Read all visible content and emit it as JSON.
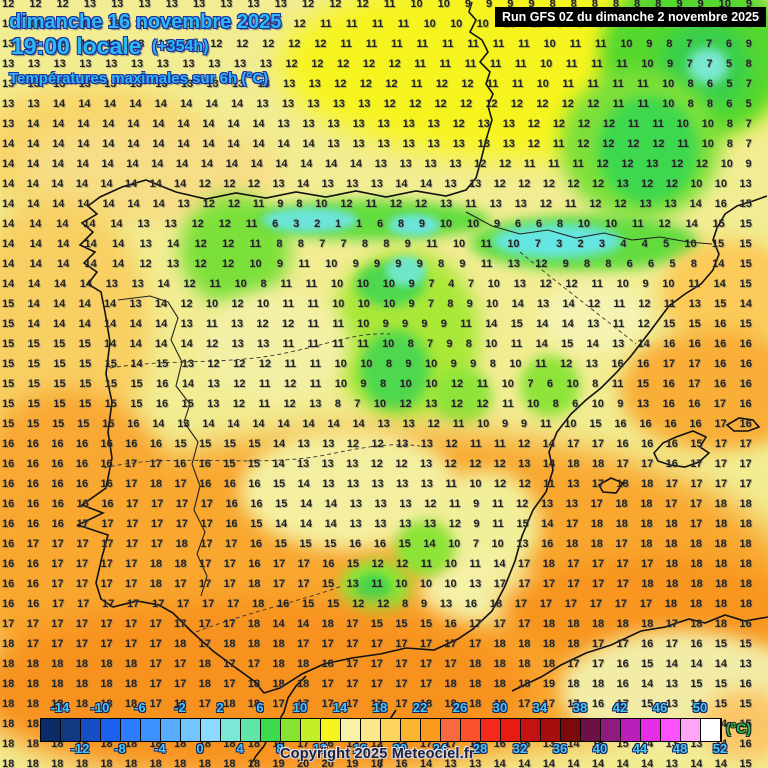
{
  "header": {
    "date_line": "dimanche 16 novembre 2025",
    "time_line": "19:00 locale",
    "offset": "(+354h)",
    "subtitle": "Températures maximales sur 6h (°C)",
    "run_info": "Run GFS 0Z du dimanche 2 novembre 2025"
  },
  "footer": {
    "copyright": "Copyright 2025 Meteociel.fr"
  },
  "colorbar": {
    "unit": "(°C)",
    "top_labels": [
      "-14",
      "-10",
      "-6",
      "-2",
      "2",
      "6",
      "10",
      "14",
      "18",
      "22",
      "26",
      "30",
      "34",
      "38",
      "42",
      "46",
      "50"
    ],
    "bottom_labels": [
      "-12",
      "-8",
      "-4",
      "0",
      "4",
      "8",
      "12",
      "16",
      "20",
      "24",
      "28",
      "32",
      "36",
      "40",
      "44",
      "48",
      "52"
    ],
    "cells": [
      "#0b2b66",
      "#0f3a82",
      "#164fc2",
      "#1c60ee",
      "#2d7bff",
      "#3e92ff",
      "#57adff",
      "#71c6ff",
      "#8cdaff",
      "#7be8d7",
      "#5ee5a7",
      "#3eda4e",
      "#86e430",
      "#c6ee28",
      "#f6f51e",
      "#f7f2a8",
      "#fbe88c",
      "#fcd35c",
      "#fcb52f",
      "#fb9a1b",
      "#f9693f",
      "#f9512a",
      "#f42b1c",
      "#e81b12",
      "#c4130f",
      "#a30e0c",
      "#7c0a08",
      "#6e1046",
      "#8f1b80",
      "#bb1fb9",
      "#e52ee5",
      "#ff52ff",
      "#ffa5f3",
      "#ffffff"
    ]
  },
  "map_palette": {
    "cold_cyan": "#6ce4da",
    "green": "#3ed84e",
    "yellow": "#f6f41e",
    "pale_yellow": "#f2ed92",
    "orange": "#f9a72f",
    "deep_orange": "#f8921f"
  },
  "grid": {
    "rows": [
      "12 12 12 13 13 13 13 13 13 13 13 12 12 12 11 10 10 9 9 9 9 8 8 8 8 8 8 9 9 10 9",
      "13 13 13 13 13 13 13 13 13 12 12 12 11 11 11 11 10 10 10 10 10 9 9 9 9 9 9 9 9 10 9",
      "13 13 13 13 13 13 13 13 12 12 12 12 12 11 11 11 11 11 11 11 11 10 11 11 10 9 8 7 7 6 9",
      "13 13 13 13 13 13 13 13 13 13 13 12 12 12 12 12 11 11 11 11 11 10 11 11 11 10 9 7 7 5 8",
      "13 13 13 13 13 13 13 13 13 13 13 13 13 12 12 12 11 12 12 11 11 10 11 11 11 11 10 8 6 5 7",
      "13 13 14 14 14 14 14 14 14 14 13 13 13 13 13 12 12 12 12 12 12 12 12 12 11 11 10 8 8 6 5",
      "13 14 14 14 14 14 14 14 14 14 14 13 13 13 13 13 13 13 12 13 13 12 12 12 12 11 11 10 10 8 7",
      "14 14 14 14 14 14 14 14 14 14 14 14 14 13 13 13 13 13 13 13 13 12 11 12 12 12 12 11 10 8 7",
      "14 14 14 14 14 14 14 14 14 14 14 14 14 14 14 13 13 13 13 12 12 11 11 11 12 12 13 12 12 10 9",
      "14 14 14 14 14 14 14 14 12 12 12 13 14 13 13 13 14 14 13 13 12 12 12 12 12 13 12 12 10 10 13",
      "14 14 14 14 14 14 14 13 12 12 11 9 8 10 12 11 12 12 13 11 13 13 12 11 12 12 13 13 14 16 15",
      "14 14 14 14 14 13 13 12 12 11 6 3 2 1 1 6 8 9 10 10 9 6 6 8 10 10 11 12 14 15 15",
      "14 14 14 14 14 13 14 12 12 11 8 8 7 7 8 8 9 11 10 11 10 7 3 2 3 4 4 5 10 15 15",
      "14 14 14 14 14 12 13 12 12 10 9 11 10 9 9 9 9 8 9 11 13 12 9 8 8 6 6 5 8 14 15",
      "14 14 14 14 13 13 14 12 11 10 8 11 11 10 10 10 9 7 4 7 10 13 12 12 11 10 9 10 11 14 15",
      "15 14 14 14 14 13 14 12 10 12 10 11 11 10 10 10 9 7 8 9 10 14 13 14 12 11 12 11 13 15 14",
      "15 14 14 14 14 14 14 13 11 13 12 12 11 11 10 9 9 9 9 11 14 15 14 14 13 11 12 15 15 16 15",
      "15 15 15 15 14 14 14 14 12 13 13 11 11 11 11 10 8 7 9 8 10 11 14 15 14 13 14 16 16 16 16",
      "15 15 15 15 15 14 15 13 12 12 12 11 11 10 10 8 9 10 9 9 8 10 11 12 13 16 16 17 17 16 16",
      "15 15 15 15 15 15 16 14 13 12 11 12 11 10 9 8 10 10 12 11 10 7 6 10 8 11 15 16 17 16 16",
      "15 15 15 15 15 15 16 15 13 12 11 12 13 8 7 10 12 13 12 12 11 10 8 6 10 9 13 16 16 17 16",
      "15 15 15 15 15 16 14 13 14 14 14 14 14 14 14 13 13 12 11 10 9 9 11 10 15 16 16 16 16 17 16",
      "16 16 16 16 16 16 16 15 15 15 15 14 13 13 12 12 13 13 12 11 11 12 14 17 17 16 16 16 15 17 17",
      "16 16 16 16 16 17 17 16 16 15 15 14 13 13 13 12 12 13 12 12 12 13 14 18 18 17 17 16 17 17 17",
      "16 16 16 16 16 17 18 17 16 16 16 15 14 13 13 13 13 13 11 10 12 12 11 13 17 18 18 17 17 17 17",
      "16 16 16 16 16 17 17 17 17 16 16 15 14 14 13 13 13 12 11 9 11 12 13 13 17 18 18 17 17 18 18",
      "16 16 16 17 17 17 17 17 17 16 15 14 14 14 13 13 13 13 12 9 11 15 14 17 18 18 18 18 17 18 18",
      "16 17 17 17 17 17 17 18 17 17 16 15 15 15 16 16 15 14 10 7 10 13 16 18 18 17 18 18 18 18 18",
      "16 16 17 17 17 17 18 18 17 17 16 17 17 16 15 12 12 11 10 11 14 17 18 17 17 17 17 18 18 18 18",
      "16 16 17 17 17 17 18 17 17 17 18 17 17 15 13 11 10 10 10 13 17 17 17 17 17 17 18 18 18 18 18",
      "16 16 17 17 17 17 17 17 17 17 18 16 15 15 12 12 8 9 13 16 18 17 17 17 17 17 17 18 18 18 18",
      "17 17 17 17 17 17 17 17 17 17 18 14 14 18 17 15 15 15 16 17 17 17 18 18 18 18 18 17 18 18 16",
      "18 17 17 17 17 17 17 18 17 18 18 18 17 17 17 17 17 17 17 17 18 18 18 18 17 17 16 17 16 15 15",
      "18 18 18 18 18 18 17 17 18 17 17 18 18 18 17 17 17 17 17 18 18 18 18 17 17 16 15 14 14 14 13",
      "18 18 18 18 18 18 17 17 18 17 18 18 18 17 17 17 17 17 18 18 18 18 19 18 18 16 14 13 15 15 16",
      "18 18 18 18 18 18 17 18 17 18 18 17 17 17 17 17 17 18 18 18 18 17 17 17 16 17 15 13 14 15 15",
      "18 18 18 18 18 18 18 18 17 17 17 17 17 17 16 16 16 16 16 15 15 14 14 13 13 13 14 14 13 14 15",
      "18 18 18 18 18 18 18 18 18 18 18 19 17 16 12 12 13 17 17 16 16 16 13 14 15 15 14 13 13 14 16",
      "18 18 18 18 18 18 18 18 18 18 18 19 20 20 19 18 16 14 13 13 14 14 14 14 14 14 14 13 14 14 15"
    ]
  }
}
